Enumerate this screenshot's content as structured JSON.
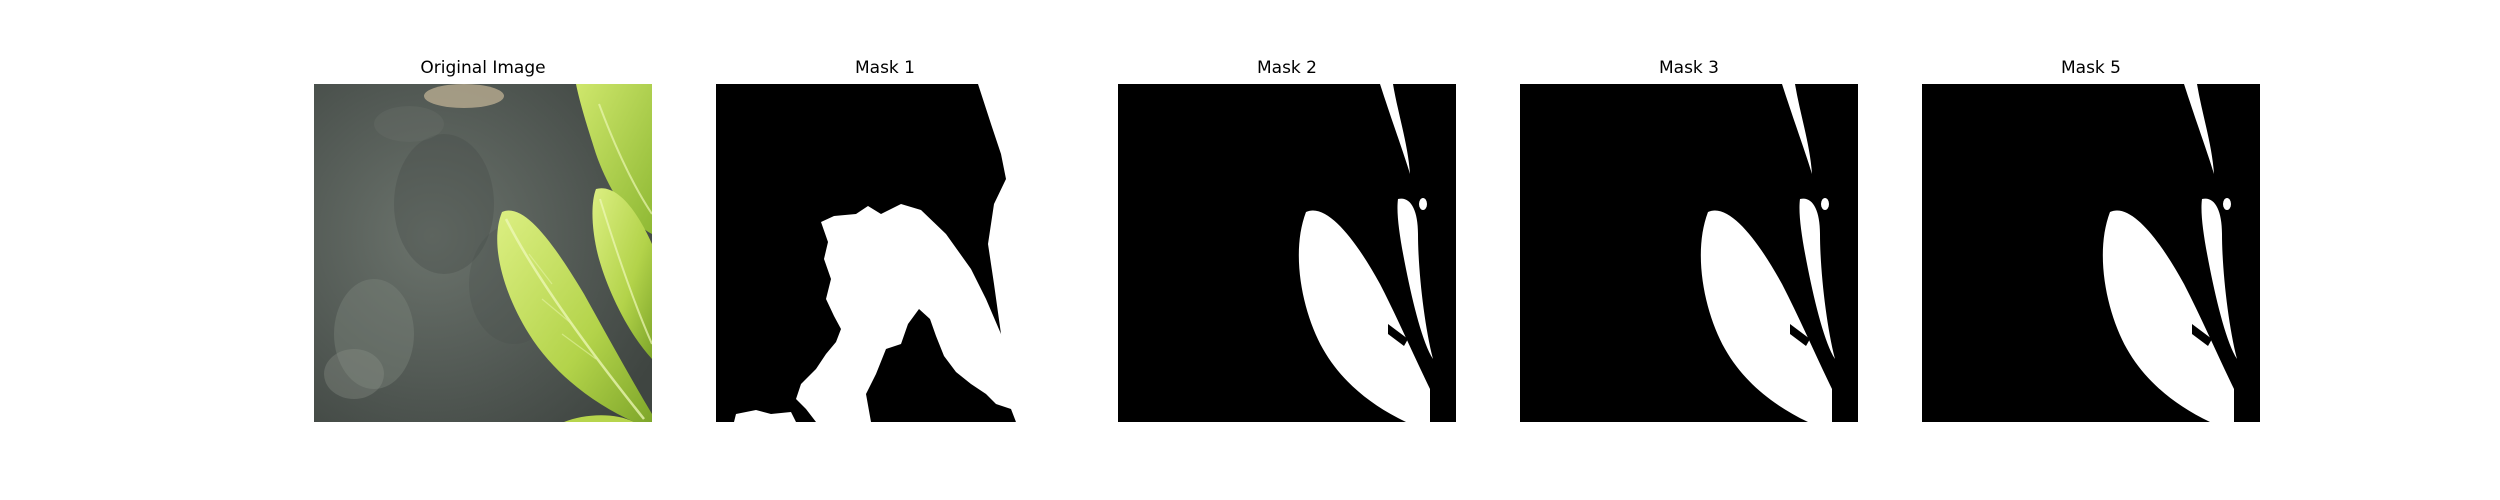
{
  "figure": {
    "panels": [
      {
        "title": "Original Image",
        "kind": "photo"
      },
      {
        "title": "Mask 1",
        "kind": "mask"
      },
      {
        "title": "Mask 2",
        "kind": "mask"
      },
      {
        "title": "Mask 3",
        "kind": "mask"
      },
      {
        "title": "Mask 5",
        "kind": "mask"
      }
    ],
    "colors": {
      "background": "#ffffff",
      "mask_background": "#000000",
      "mask_foreground": "#ffffff",
      "leaf_light": "#d9ec7a",
      "leaf_mid": "#a9cc3c",
      "leaf_dark": "#5f8a1c",
      "stone": "#5a625c"
    }
  }
}
